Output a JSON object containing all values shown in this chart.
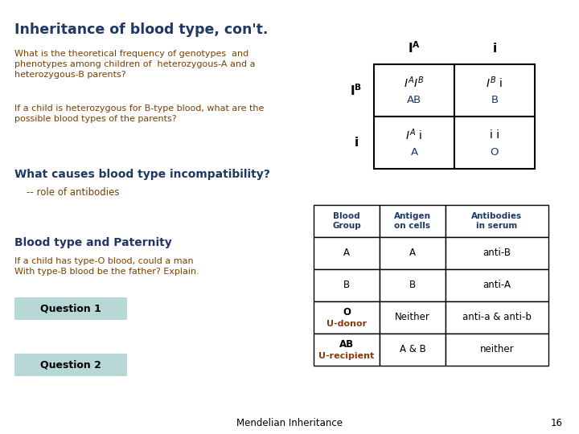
{
  "title": "Inheritance of blood type, con't.",
  "title_color": "#1F3864",
  "bg_color": "#FFFFFF",
  "brown_color": "#7B3F00",
  "blue_color": "#1F3864",
  "question_bg": "#B8D8D8",
  "paragraph1": "What is the theoretical frequency of genotypes  and\nphenotypes among children of  heterozygous-A and a\nheterozygous-B parents?",
  "paragraph2": "If a child is heterozygous for B-type blood, what are the\npossible blood types of the parents?",
  "section2_title": "What causes blood type incompatibility?",
  "section2_sub": "    -- role of antibodies",
  "section3_title": "Blood type and Paternity",
  "section3_text": "If a child has type-O blood, could a man\nWith type-B blood be the father? Explain.",
  "question1": "Question 1",
  "question2": "Question 2",
  "footer": "Mendelian Inheritance",
  "page_num": "16",
  "table_header_color": "#1F3864",
  "table_u_color": "#8B3A0F"
}
